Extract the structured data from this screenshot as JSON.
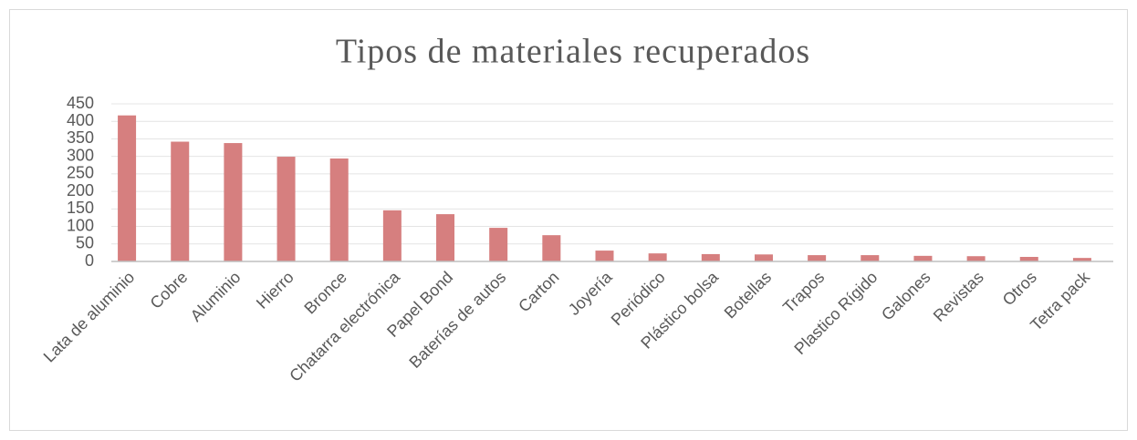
{
  "chart_data": {
    "type": "bar",
    "title": "Tipos de materiales recuperados",
    "categories": [
      "Lata de aluminio",
      "Cobre",
      "Aluminio",
      "Hierro",
      "Bronce",
      "Chatarra electrónica",
      "Papel Bond",
      "Baterías de autos",
      "Carton",
      "Joyería",
      "Periódico",
      "Plástico bolsa",
      "Botellas",
      "Trapos",
      "Plastico Rígido",
      "Galones",
      "Revistas",
      "Otros",
      "Tetra pack"
    ],
    "values": [
      417,
      342,
      338,
      299,
      294,
      146,
      135,
      96,
      75,
      31,
      23,
      21,
      20,
      18,
      18,
      16,
      15,
      13,
      10
    ],
    "color": "#d67f7f",
    "ylim": [
      0,
      450
    ],
    "yticks": [
      0,
      50,
      100,
      150,
      200,
      250,
      300,
      350,
      400,
      450
    ],
    "grid": true
  }
}
